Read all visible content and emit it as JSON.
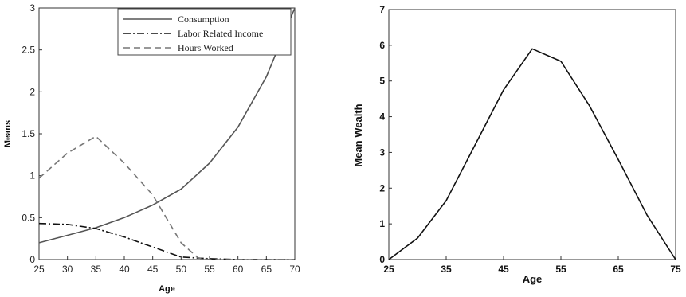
{
  "chart_data": [
    {
      "type": "line",
      "title": "",
      "xlabel": "Age",
      "ylabel": "Means",
      "xlim": [
        25,
        70
      ],
      "ylim": [
        0,
        3
      ],
      "x_ticks": [
        "25",
        "30",
        "35",
        "40",
        "45",
        "50",
        "55",
        "60",
        "65",
        "70"
      ],
      "y_ticks": [
        "0",
        "0.5",
        "1",
        "1.5",
        "2",
        "2.5",
        "3"
      ],
      "grid": false,
      "legend_position": "top-right",
      "series": [
        {
          "name": "Consumption",
          "style": "solid",
          "color": "#555555",
          "x": [
            25,
            30,
            35,
            40,
            45,
            50,
            55,
            60,
            65,
            70
          ],
          "y": [
            0.2,
            0.29,
            0.38,
            0.5,
            0.65,
            0.84,
            1.15,
            1.58,
            2.18,
            3.0
          ]
        },
        {
          "name": "Labor Related Income",
          "style": "dashdot",
          "color": "#111111",
          "x": [
            25,
            30,
            35,
            40,
            45,
            50,
            55,
            60,
            65,
            70
          ],
          "y": [
            0.43,
            0.42,
            0.37,
            0.27,
            0.15,
            0.03,
            0.01,
            0.0,
            0.0,
            0.0
          ]
        },
        {
          "name": "Hours Worked",
          "style": "dashed",
          "color": "#777777",
          "x": [
            25,
            30,
            35,
            40,
            45,
            50,
            53,
            55,
            60,
            65,
            70
          ],
          "y": [
            0.97,
            1.27,
            1.47,
            1.15,
            0.77,
            0.2,
            0.02,
            0.0,
            0.0,
            0.0,
            0.0
          ]
        }
      ]
    },
    {
      "type": "line",
      "title": "",
      "xlabel": "Age",
      "ylabel": "Mean Wealth",
      "xlim": [
        25,
        75
      ],
      "ylim": [
        0,
        7
      ],
      "x_ticks": [
        "25",
        "35",
        "45",
        "55",
        "65",
        "75"
      ],
      "y_ticks": [
        "0",
        "1",
        "2",
        "3",
        "4",
        "5",
        "6",
        "7"
      ],
      "grid": false,
      "series": [
        {
          "style": "solid",
          "color": "#111111",
          "x": [
            25,
            30,
            35,
            40,
            45,
            50,
            55,
            60,
            65,
            70,
            75
          ],
          "y": [
            0.0,
            0.6,
            1.65,
            3.2,
            4.75,
            5.9,
            5.55,
            4.3,
            2.8,
            1.25,
            0.0
          ]
        }
      ]
    }
  ]
}
